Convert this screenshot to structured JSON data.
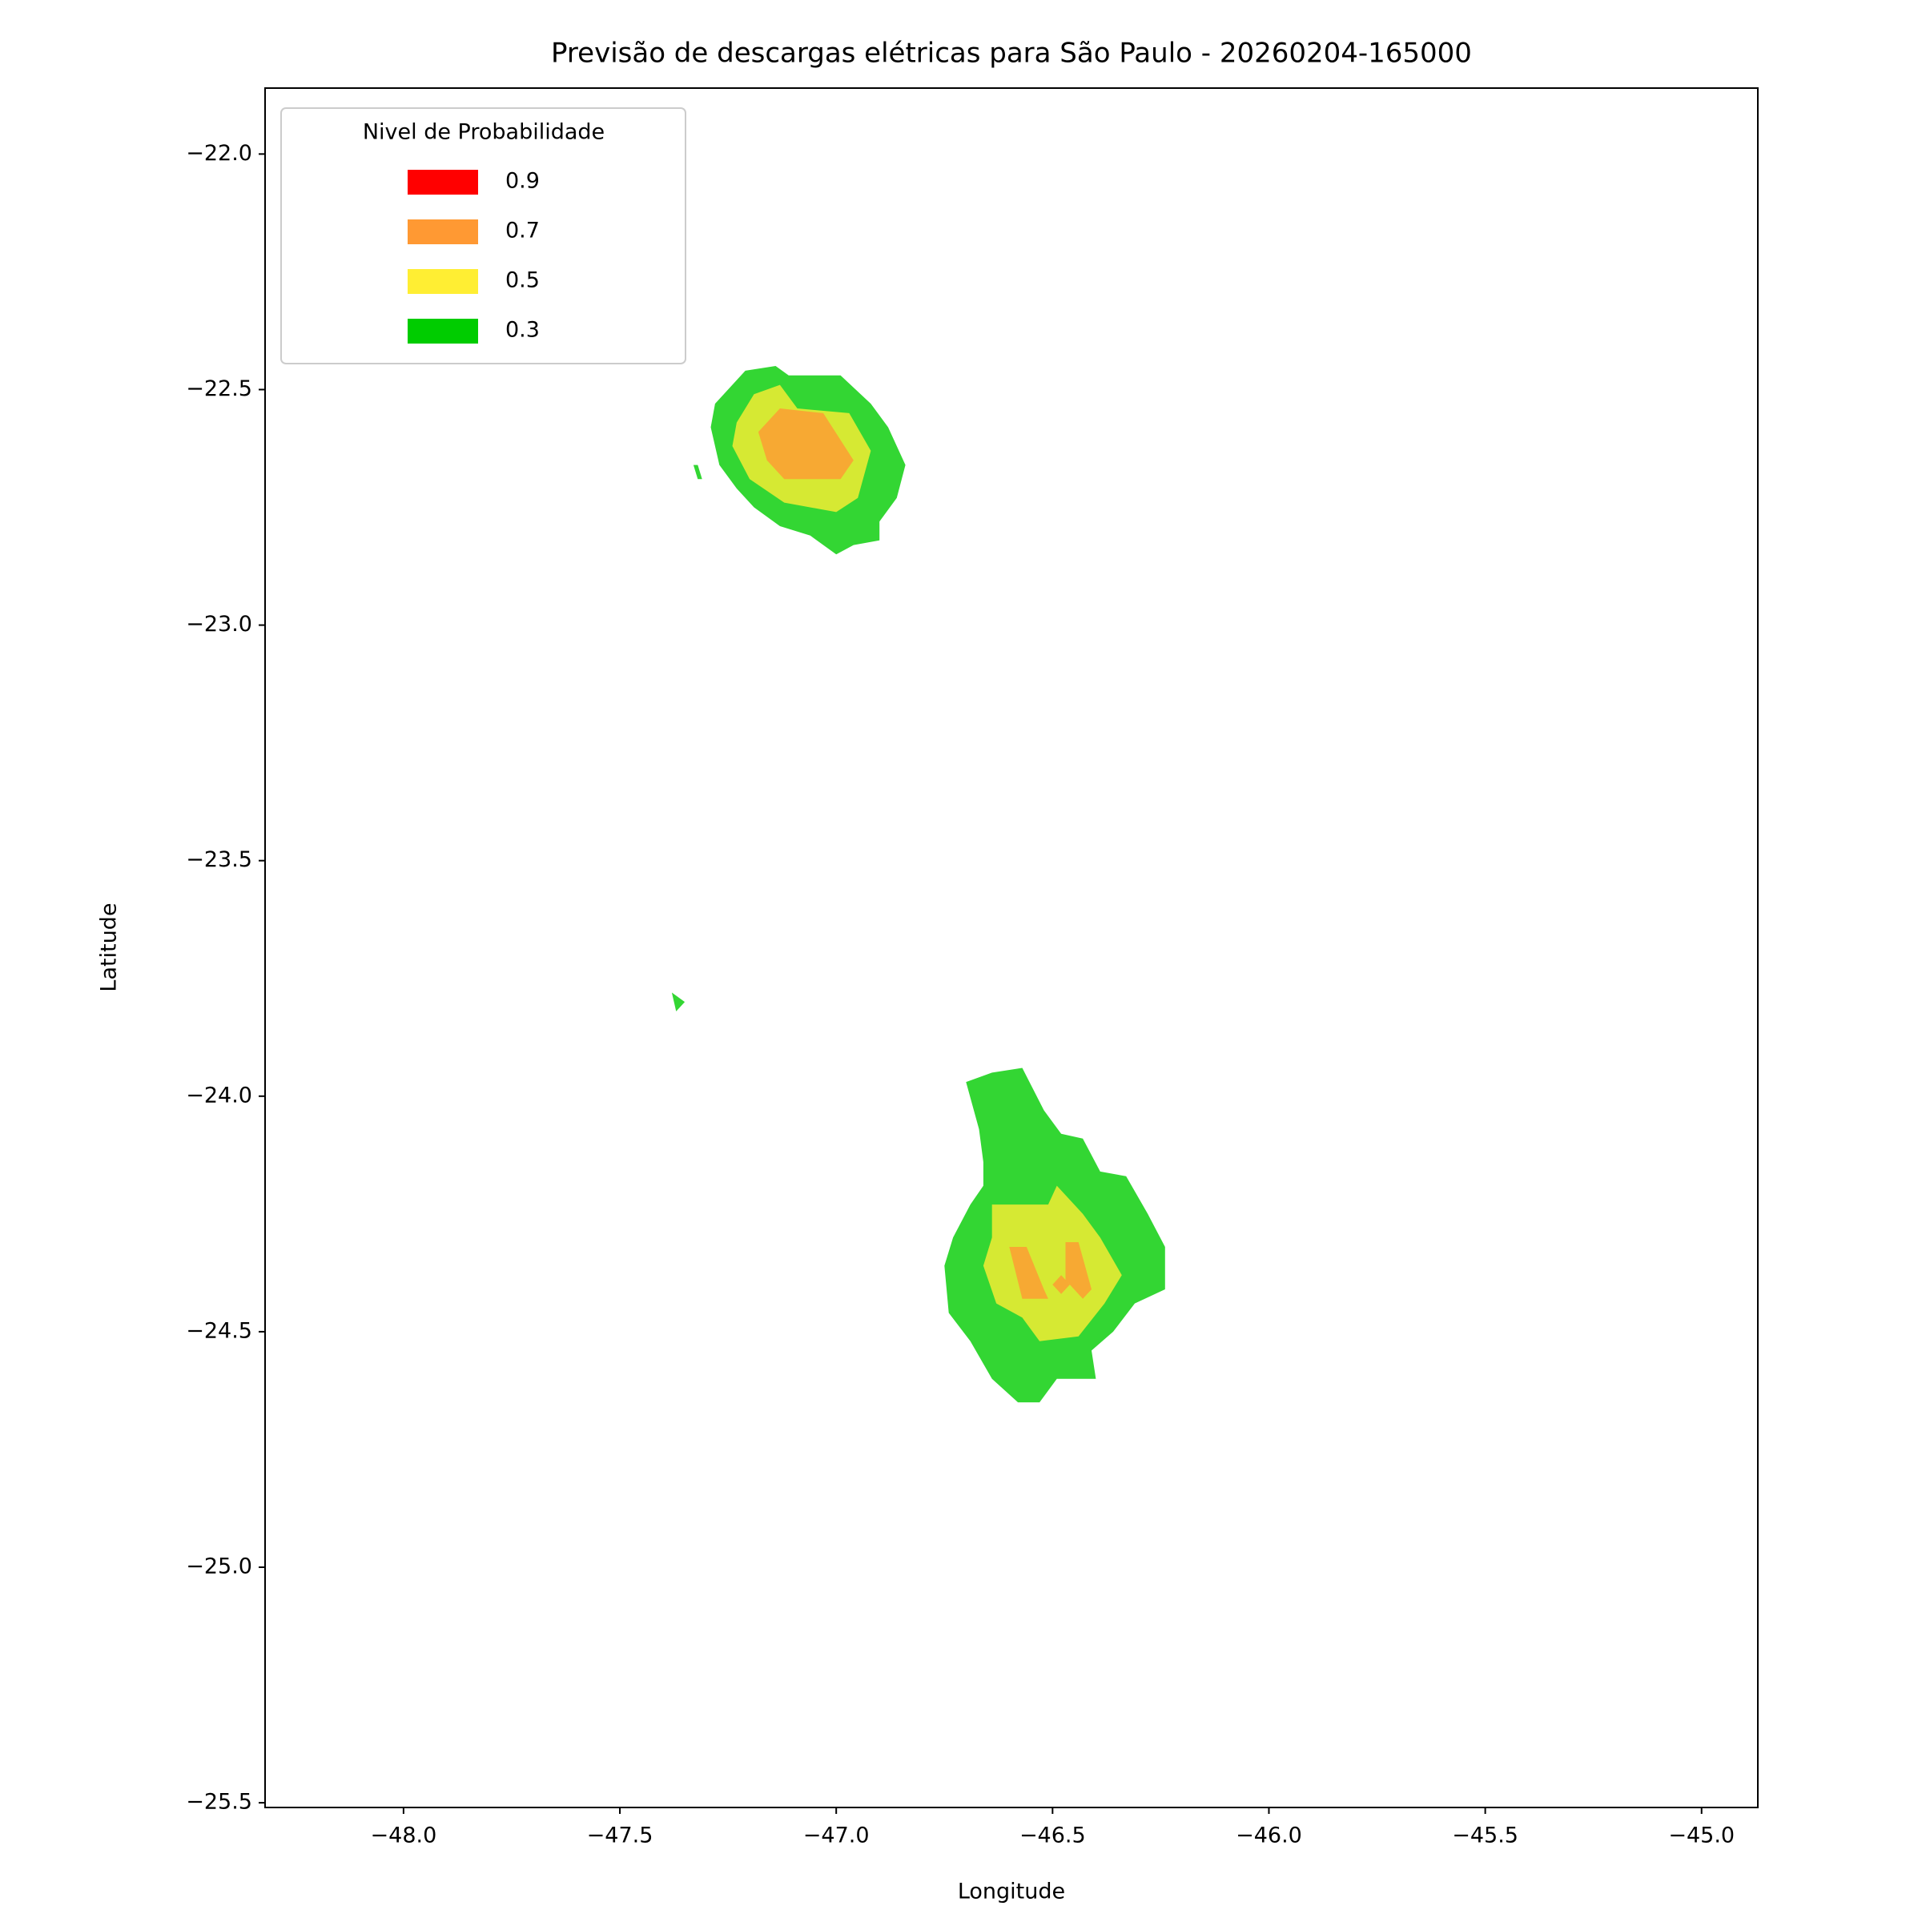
{
  "chart_data": {
    "type": "contour",
    "title": "Previsão de descargas elétricas para São Paulo - 20260204-165000",
    "x_label": "Longitude",
    "y_label": "Latitude",
    "xlim": [
      -48.32,
      -44.87
    ],
    "ylim": [
      -25.51,
      -21.86
    ],
    "xticks": [
      {
        "value": -48,
        "label": "−48.0"
      },
      {
        "value": -47.5,
        "label": "−47.5"
      },
      {
        "value": -47,
        "label": "−47.0"
      },
      {
        "value": -46.5,
        "label": "−46.5"
      },
      {
        "value": -46,
        "label": "−46.0"
      },
      {
        "value": -45.5,
        "label": "−45.5"
      },
      {
        "value": -45,
        "label": "−45.0"
      }
    ],
    "yticks": [
      {
        "value": -22,
        "label": "−22.0"
      },
      {
        "value": -22.5,
        "label": "−22.5"
      },
      {
        "value": -23,
        "label": "−23.0"
      },
      {
        "value": -23.5,
        "label": "−23.5"
      },
      {
        "value": -24,
        "label": "−24.0"
      },
      {
        "value": -24.5,
        "label": "−24.5"
      },
      {
        "value": -25,
        "label": "−25.0"
      },
      {
        "value": -25.5,
        "label": "−25.5"
      }
    ],
    "grid": false,
    "legend_title": "Nivel de Probabilidade",
    "legend_position": "upper-left",
    "fill_opacity": 0.8,
    "series": [
      {
        "name": "0.9",
        "color": "#ff0000",
        "polygons": []
      },
      {
        "name": "0.7",
        "color": "#ff9933",
        "polygons": [
          {
            "lon": [
              -47.18,
              -47.13,
              -47.03,
              -46.96,
              -46.99,
              -47.12,
              -47.16
            ],
            "lat": [
              -22.59,
              -22.54,
              -22.55,
              -22.65,
              -22.69,
              -22.69,
              -22.65
            ]
          },
          {
            "lon": [
              -46.6,
              -46.56,
              -46.52,
              -46.51,
              -46.57
            ],
            "lat": [
              -24.32,
              -24.32,
              -24.41,
              -24.43,
              -24.43
            ]
          },
          {
            "lon": [
              -46.47,
              -46.44,
              -46.41,
              -46.43,
              -46.47
            ],
            "lat": [
              -24.31,
              -24.31,
              -24.41,
              -24.43,
              -24.39
            ]
          },
          {
            "lon": [
              -46.5,
              -46.48,
              -46.46,
              -46.48
            ],
            "lat": [
              -24.4,
              -24.38,
              -24.4,
              -24.42
            ]
          }
        ]
      },
      {
        "name": "0.5",
        "color": "#ffee33",
        "polygons": [
          {
            "lon": [
              -47.23,
              -47.19,
              -47.13,
              -47.09,
              -46.97,
              -46.92,
              -46.95,
              -47.0,
              -47.12,
              -47.2,
              -47.24
            ],
            "lat": [
              -22.57,
              -22.51,
              -22.49,
              -22.54,
              -22.55,
              -22.63,
              -22.73,
              -22.76,
              -22.74,
              -22.69,
              -22.62
            ]
          },
          {
            "lon": [
              -46.64,
              -46.51,
              -46.49,
              -46.43,
              -46.39,
              -46.34,
              -46.38,
              -46.44,
              -46.53,
              -46.57,
              -46.63,
              -46.66,
              -46.64
            ],
            "lat": [
              -24.23,
              -24.23,
              -24.19,
              -24.25,
              -24.3,
              -24.38,
              -24.44,
              -24.51,
              -24.52,
              -24.47,
              -24.44,
              -24.36,
              -24.3
            ]
          }
        ]
      },
      {
        "name": "0.3",
        "color": "#00cc00",
        "polygons": [
          {
            "lon": [
              -47.28,
              -47.21,
              -47.14,
              -47.11,
              -46.99,
              -46.92,
              -46.88,
              -46.84,
              -46.86,
              -46.9,
              -46.9,
              -46.96,
              -47.0,
              -47.06,
              -47.13,
              -47.19,
              -47.23,
              -47.27,
              -47.29
            ],
            "lat": [
              -22.53,
              -22.46,
              -22.45,
              -22.47,
              -22.47,
              -22.53,
              -22.58,
              -22.66,
              -22.73,
              -22.78,
              -22.82,
              -22.83,
              -22.85,
              -22.81,
              -22.79,
              -22.75,
              -22.71,
              -22.66,
              -22.58
            ]
          },
          {
            "lon": [
              -46.7,
              -46.64,
              -46.57,
              -46.52,
              -46.48,
              -46.43,
              -46.39,
              -46.33,
              -46.28,
              -46.24,
              -46.24,
              -46.31,
              -46.36,
              -46.41,
              -46.4,
              -46.49,
              -46.53,
              -46.58,
              -46.64,
              -46.69,
              -46.74,
              -46.75,
              -46.73,
              -46.69,
              -46.66,
              -46.66,
              -46.67
            ],
            "lat": [
              -23.97,
              -23.95,
              -23.94,
              -24.03,
              -24.08,
              -24.09,
              -24.16,
              -24.17,
              -24.25,
              -24.32,
              -24.41,
              -24.44,
              -24.5,
              -24.54,
              -24.6,
              -24.6,
              -24.65,
              -24.65,
              -24.6,
              -24.52,
              -24.46,
              -24.36,
              -24.3,
              -24.23,
              -24.19,
              -24.14,
              -24.07
            ]
          },
          {
            "lon": [
              -47.33,
              -47.32,
              -47.31,
              -47.32
            ],
            "lat": [
              -22.66,
              -22.66,
              -22.69,
              -22.69
            ]
          },
          {
            "lon": [
              -47.38,
              -47.35,
              -47.37
            ],
            "lat": [
              -23.78,
              -23.8,
              -23.82
            ]
          }
        ]
      }
    ]
  }
}
